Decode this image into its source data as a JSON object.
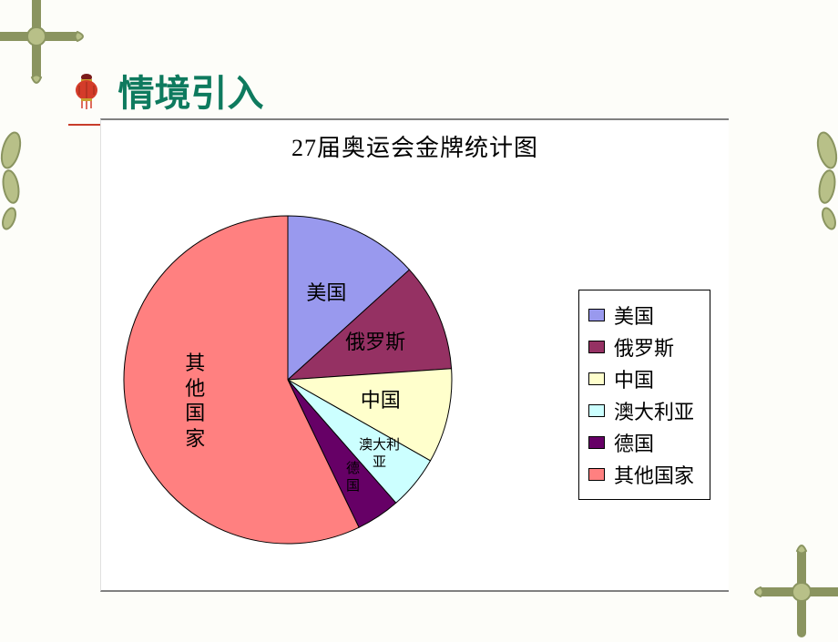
{
  "heading": {
    "text": "情境引入",
    "color": "#0e7a5e",
    "underline_color": "#c83c2a",
    "icon_color": "#c83c2a"
  },
  "chart": {
    "type": "pie",
    "title": "27届奥运会金牌统计图",
    "title_fontsize": 26,
    "label_fontsize": 22,
    "small_label_fontsize": 15,
    "background_color": "#ffffff",
    "slices": [
      {
        "label": "美国",
        "value": 40,
        "color": "#9999ee"
      },
      {
        "label": "俄罗斯",
        "value": 32,
        "color": "#953163"
      },
      {
        "label": "中国",
        "value": 28,
        "color": "#ffffcc"
      },
      {
        "label": "澳大利\n亚",
        "legend_label": "澳大利亚",
        "value": 16,
        "color": "#ccffff"
      },
      {
        "label": "德\n国",
        "legend_label": "德国",
        "value": 13,
        "color": "#660066"
      },
      {
        "label": "其\n他\n国\n家",
        "legend_label": "其他国家",
        "value": 172,
        "color": "#ff8080"
      }
    ],
    "slice_stroke": "#000000",
    "start_angle_deg": -90,
    "legend_border": "#000000"
  },
  "page": {
    "background_color": "#fdfdf9",
    "ornament_stroke": "#8a9460",
    "ornament_fill": "#b8c088"
  }
}
